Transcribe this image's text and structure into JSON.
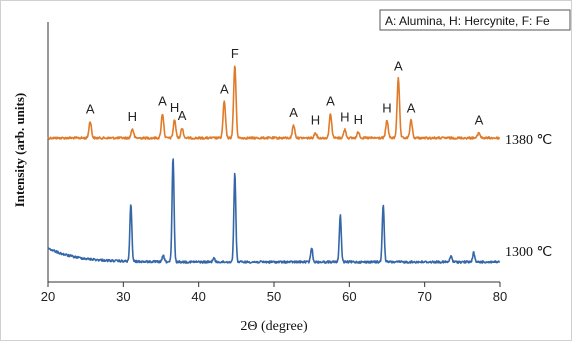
{
  "chart_data": {
    "type": "line",
    "xlabel": "2Θ (degree)",
    "ylabel": "Intensity (arb. units)",
    "xlim": [
      20,
      80
    ],
    "x_ticks": [
      20,
      30,
      40,
      50,
      60,
      70,
      80
    ],
    "legend_box": "A: Alumina, H: Hercynite, F: Fe",
    "series": [
      {
        "name": "1380 ℃",
        "color": "#e07b2a",
        "peaks": [
          {
            "x": 25.6,
            "h": 0.22,
            "label": "A"
          },
          {
            "x": 31.2,
            "h": 0.12,
            "label": "H"
          },
          {
            "x": 35.2,
            "h": 0.32,
            "label": "A"
          },
          {
            "x": 36.8,
            "h": 0.24,
            "label": "H"
          },
          {
            "x": 37.8,
            "h": 0.13,
            "label": "A"
          },
          {
            "x": 43.4,
            "h": 0.48,
            "label": "A"
          },
          {
            "x": 44.8,
            "h": 0.95,
            "label": "F"
          },
          {
            "x": 52.6,
            "h": 0.17,
            "label": "A"
          },
          {
            "x": 55.5,
            "h": 0.07,
            "label": "H"
          },
          {
            "x": 57.5,
            "h": 0.32,
            "label": "A"
          },
          {
            "x": 59.4,
            "h": 0.11,
            "label": "H"
          },
          {
            "x": 61.2,
            "h": 0.08,
            "label": "H"
          },
          {
            "x": 65.0,
            "h": 0.23,
            "label": "H"
          },
          {
            "x": 66.5,
            "h": 0.78,
            "label": "A"
          },
          {
            "x": 68.2,
            "h": 0.23,
            "label": "A"
          },
          {
            "x": 77.2,
            "h": 0.07,
            "label": "A"
          }
        ]
      },
      {
        "name": "1300 ℃",
        "color": "#3566a8",
        "peaks": [
          {
            "x": 31.0,
            "h": 0.55
          },
          {
            "x": 35.3,
            "h": 0.06
          },
          {
            "x": 36.6,
            "h": 1.0
          },
          {
            "x": 42.0,
            "h": 0.04
          },
          {
            "x": 44.8,
            "h": 0.85
          },
          {
            "x": 55.0,
            "h": 0.14
          },
          {
            "x": 58.8,
            "h": 0.45
          },
          {
            "x": 64.5,
            "h": 0.55
          },
          {
            "x": 73.5,
            "h": 0.06
          },
          {
            "x": 76.5,
            "h": 0.09
          }
        ]
      }
    ]
  }
}
